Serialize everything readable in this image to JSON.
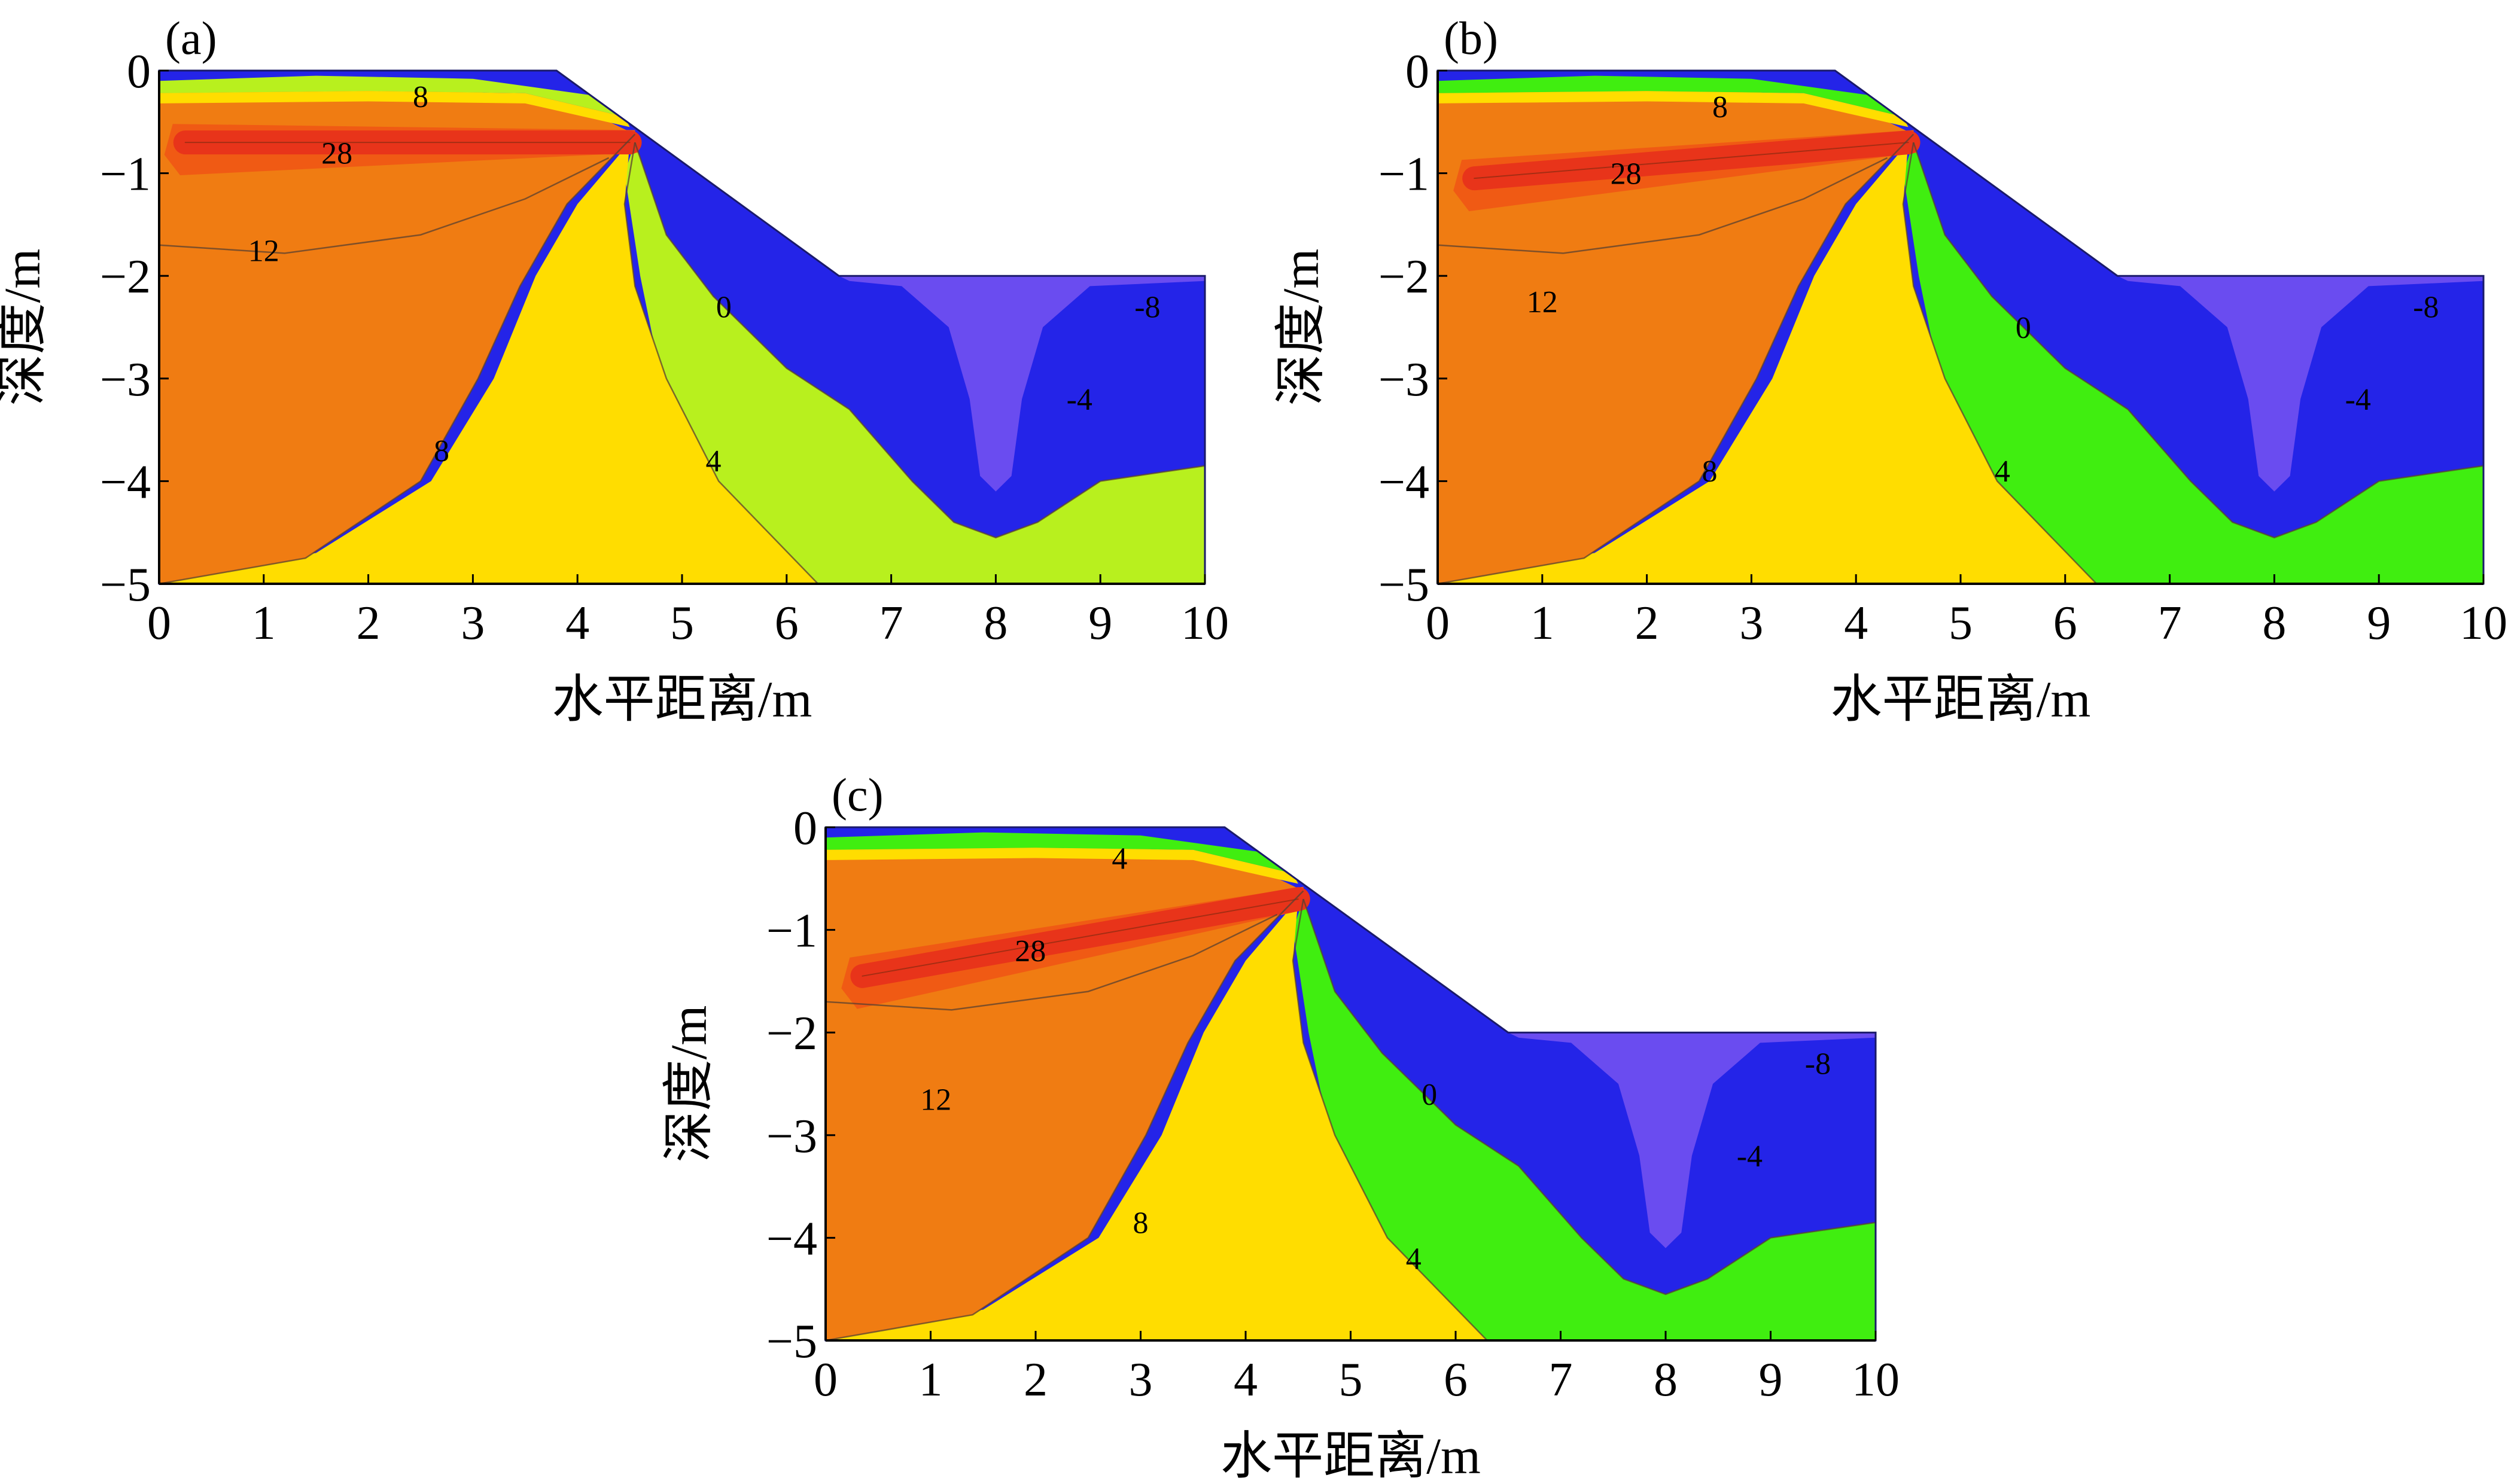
{
  "chart_data": [
    {
      "type": "heatmap",
      "panel_label": "(a)",
      "xlabel": "水平距离/m",
      "ylabel": "深度/m",
      "xlim": [
        0,
        10
      ],
      "ylim": [
        -5,
        0
      ],
      "x_ticks": [
        "0",
        "1",
        "2",
        "3",
        "4",
        "5",
        "6",
        "7",
        "8",
        "9",
        "10"
      ],
      "y_ticks": [
        "0",
        "−1",
        "−2",
        "−3",
        "−4",
        "−5"
      ],
      "contour_labels": [
        {
          "text": "8",
          "x": 2.5,
          "y": -0.25
        },
        {
          "text": "28",
          "x": 1.7,
          "y": -0.8
        },
        {
          "text": "12",
          "x": 1.0,
          "y": -1.75
        },
        {
          "text": "0",
          "x": 5.4,
          "y": -2.3
        },
        {
          "text": "-8",
          "x": 9.45,
          "y": -2.3
        },
        {
          "text": "-4",
          "x": 8.8,
          "y": -3.2
        },
        {
          "text": "8",
          "x": 2.7,
          "y": -3.7
        },
        {
          "text": "4",
          "x": 5.3,
          "y": -3.8
        }
      ],
      "heat_source": {
        "x_start": 0.25,
        "x_end": 4.5,
        "y_start": -0.7,
        "y_end": -0.7
      },
      "region_colors": {
        "hot": "#e8341a",
        "warm": "#f07c12",
        "mild": "#ffdd00",
        "cool": "#b8f01e",
        "cold": "#2424e8",
        "coldest": "#6a4cf0"
      }
    },
    {
      "type": "heatmap",
      "panel_label": "(b)",
      "xlabel": "水平距离/m",
      "ylabel": "深度/m",
      "xlim": [
        0,
        10
      ],
      "ylim": [
        -5,
        0
      ],
      "x_ticks": [
        "0",
        "1",
        "2",
        "3",
        "4",
        "5",
        "6",
        "7",
        "8",
        "9",
        "10"
      ],
      "y_ticks": [
        "0",
        "−1",
        "−2",
        "−3",
        "−4",
        "−5"
      ],
      "contour_labels": [
        {
          "text": "8",
          "x": 2.7,
          "y": -0.35
        },
        {
          "text": "28",
          "x": 1.8,
          "y": -1.0
        },
        {
          "text": "12",
          "x": 1.0,
          "y": -2.25
        },
        {
          "text": "0",
          "x": 5.6,
          "y": -2.5
        },
        {
          "text": "-8",
          "x": 9.45,
          "y": -2.3
        },
        {
          "text": "-4",
          "x": 8.8,
          "y": -3.2
        },
        {
          "text": "8",
          "x": 2.6,
          "y": -3.9
        },
        {
          "text": "4",
          "x": 5.4,
          "y": -3.9
        }
      ],
      "heat_source": {
        "x_start": 0.35,
        "x_end": 4.5,
        "y_start": -1.05,
        "y_end": -0.7
      },
      "region_colors": {
        "hot": "#e8341a",
        "warm": "#f07c12",
        "mild": "#ffdd00",
        "cool": "#40ee10",
        "cold": "#2424e8",
        "coldest": "#6a4cf0"
      }
    },
    {
      "type": "heatmap",
      "panel_label": "(c)",
      "xlabel": "水平距离/m",
      "ylabel": "深度/m",
      "xlim": [
        0,
        10
      ],
      "ylim": [
        -5,
        0
      ],
      "x_ticks": [
        "0",
        "1",
        "2",
        "3",
        "4",
        "5",
        "6",
        "7",
        "8",
        "9",
        "10"
      ],
      "y_ticks": [
        "0",
        "−1",
        "−2",
        "−3",
        "−4",
        "−5"
      ],
      "contour_labels": [
        {
          "text": "4",
          "x": 2.8,
          "y": -0.3
        },
        {
          "text": "28",
          "x": 1.95,
          "y": -1.2
        },
        {
          "text": "12",
          "x": 1.05,
          "y": -2.65
        },
        {
          "text": "0",
          "x": 5.75,
          "y": -2.6
        },
        {
          "text": "-8",
          "x": 9.45,
          "y": -2.3
        },
        {
          "text": "-4",
          "x": 8.8,
          "y": -3.2
        },
        {
          "text": "8",
          "x": 3.0,
          "y": -3.85
        },
        {
          "text": "4",
          "x": 5.6,
          "y": -4.2
        }
      ],
      "heat_source": {
        "x_start": 0.35,
        "x_end": 4.5,
        "y_start": -1.45,
        "y_end": -0.7
      },
      "region_colors": {
        "hot": "#e8341a",
        "warm": "#f07c12",
        "mild": "#ffdd00",
        "cool": "#40ee10",
        "cold": "#2424e8",
        "coldest": "#6a4cf0"
      }
    }
  ]
}
